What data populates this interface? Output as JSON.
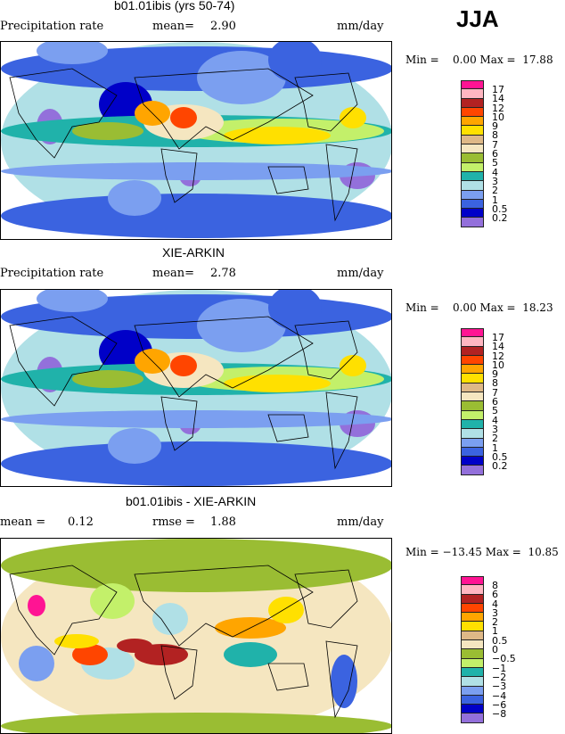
{
  "season": "JJA",
  "colors": [
    "#FF1493",
    "#FFB6C1",
    "#B22222",
    "#FF4500",
    "#FFA500",
    "#FFE000",
    "#DEB887",
    "#F5E6C0",
    "#9ABD33",
    "#C3F06A",
    "#20B2AA",
    "#B0E0E6",
    "#7B9FF0",
    "#3B63E0",
    "#0000C8",
    "#9370DB"
  ],
  "panels": [
    {
      "title": "b01.01ibis (yrs 50-74)",
      "left_label": "Precipitation rate",
      "mean_label": "mean=",
      "mean": "2.90",
      "units": "mm/day",
      "minmax": "Min =    0.00 Max =  17.88",
      "levels": [
        "17",
        "14",
        "12",
        "10",
        "9",
        "8",
        "7",
        "6",
        "5",
        "4",
        "3",
        "2",
        "1",
        "0.5",
        "0.2"
      ]
    },
    {
      "title": "XIE-ARKIN",
      "left_label": "Precipitation rate",
      "mean_label": "mean=",
      "mean": "2.78",
      "units": "mm/day",
      "minmax": "Min =    0.00 Max =  18.23",
      "levels": [
        "17",
        "14",
        "12",
        "10",
        "9",
        "8",
        "7",
        "6",
        "5",
        "4",
        "3",
        "2",
        "1",
        "0.5",
        "0.2"
      ]
    },
    {
      "title": "b01.01ibis - XIE-ARKIN",
      "left_label": "mean =",
      "mean": "0.12",
      "rmse_label": "rmse =",
      "rmse": "1.88",
      "units": "mm/day",
      "minmax": "Min = −13.45 Max =  10.85",
      "levels": [
        "8",
        "6",
        "4",
        "3",
        "2",
        "1",
        "0.5",
        "0",
        "−0.5",
        "−1",
        "−2",
        "−3",
        "−4",
        "−6",
        "−8"
      ]
    }
  ]
}
